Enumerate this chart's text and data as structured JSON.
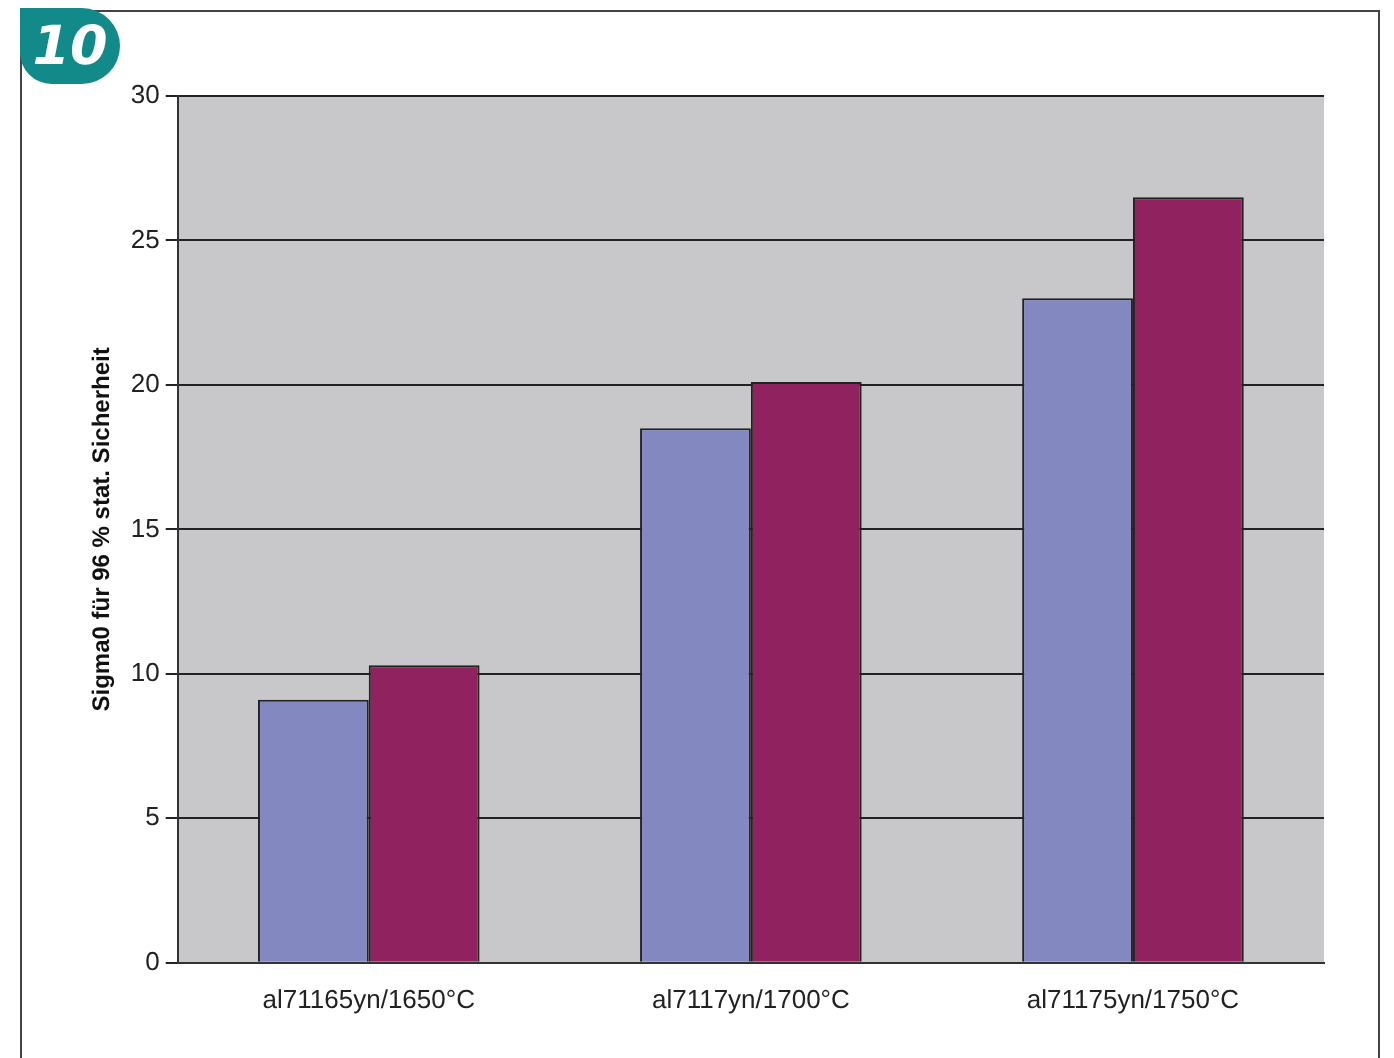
{
  "chart_data": {
    "type": "bar",
    "ylabel": "Sigma0 für 96 % stat. Sicherheit",
    "annotations": [
      "10"
    ],
    "categories": [
      "al71165yn/1650°C",
      "al7117yn/1700°C",
      "al71175yn/1750°C"
    ],
    "series": [
      {
        "color": "#8488c0",
        "values": [
          9.1,
          18.5,
          23.0
        ]
      },
      {
        "color": "#902260",
        "values": [
          10.3,
          20.1,
          26.5
        ]
      }
    ],
    "ylim": [
      0,
      30
    ],
    "yticks": [
      0,
      5,
      10,
      15,
      20,
      25,
      30
    ],
    "grid": "y",
    "legend": false
  }
}
